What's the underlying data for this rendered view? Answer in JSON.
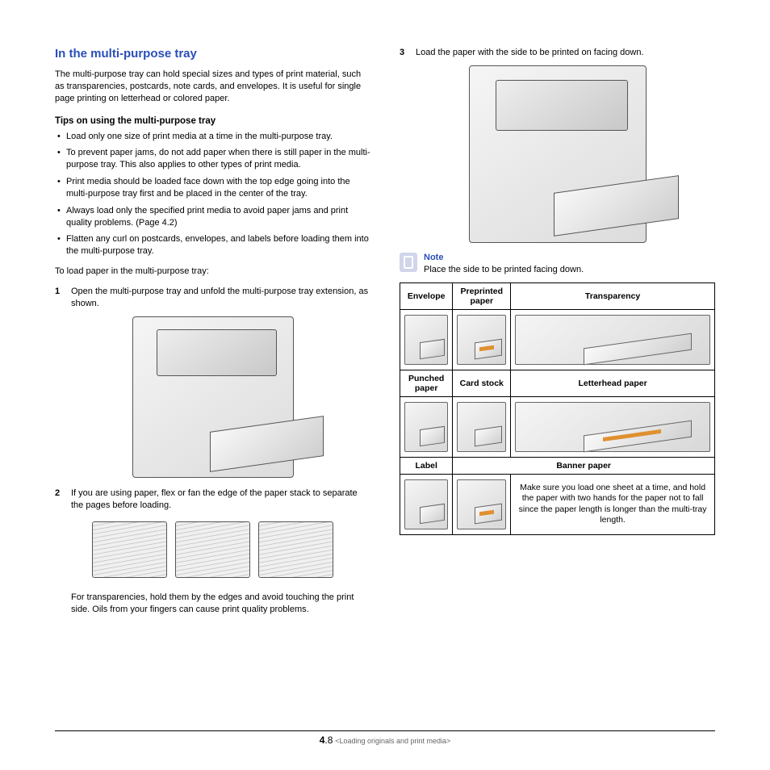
{
  "section_title": "In the multi-purpose tray",
  "intro": "The multi-purpose tray can hold special sizes and types of print material, such as transparencies, postcards, note cards, and envelopes. It is useful for single page printing on letterhead or colored paper.",
  "tips_heading": "Tips on using the multi-purpose tray",
  "tips": [
    "Load only one size of print media at a time in the multi-purpose tray.",
    "To prevent paper jams, do not add paper when there is still paper in the multi-purpose tray. This also applies to other types of print media.",
    "Print media should be loaded face down with the top edge going into the multi-purpose tray first and be placed in the center of the tray.",
    "Always load only the specified print media to avoid paper jams and print quality problems. (Page 4.2)",
    "Flatten any curl on postcards, envelopes, and labels before loading them into the multi-purpose tray."
  ],
  "lead_in": "To load paper in the multi-purpose tray:",
  "steps": {
    "s1_num": "1",
    "s1": "Open the multi-purpose tray and unfold the multi-purpose tray extension, as shown.",
    "s2_num": "2",
    "s2": "If you are using paper, flex or fan the edge of the paper stack to separate the pages before loading.",
    "s2_caption": "For transparencies, hold them by the edges and avoid touching the print side. Oils from your fingers can cause print quality problems.",
    "s3_num": "3",
    "s3": "Load the paper with the side to be printed on facing down."
  },
  "note": {
    "title": "Note",
    "body": "Place the side to be printed facing down."
  },
  "table": {
    "row1": [
      "Envelope",
      "Preprinted paper",
      "Transparency"
    ],
    "row2": [
      "Punched paper",
      "Card stock",
      "Letterhead paper"
    ],
    "row3_label": "Label",
    "row3_banner": "Banner paper",
    "banner_text": "Make sure you load one sheet at a time, and hold the paper with two hands for the paper not to fall since the paper length is longer than the multi-tray length."
  },
  "footer": {
    "chapter_num": "4",
    "page_num": ".8",
    "chapter_title": "<Loading originals and print media>"
  },
  "colors": {
    "heading_blue": "#2a4fb8",
    "accent_orange": "#e09030"
  }
}
